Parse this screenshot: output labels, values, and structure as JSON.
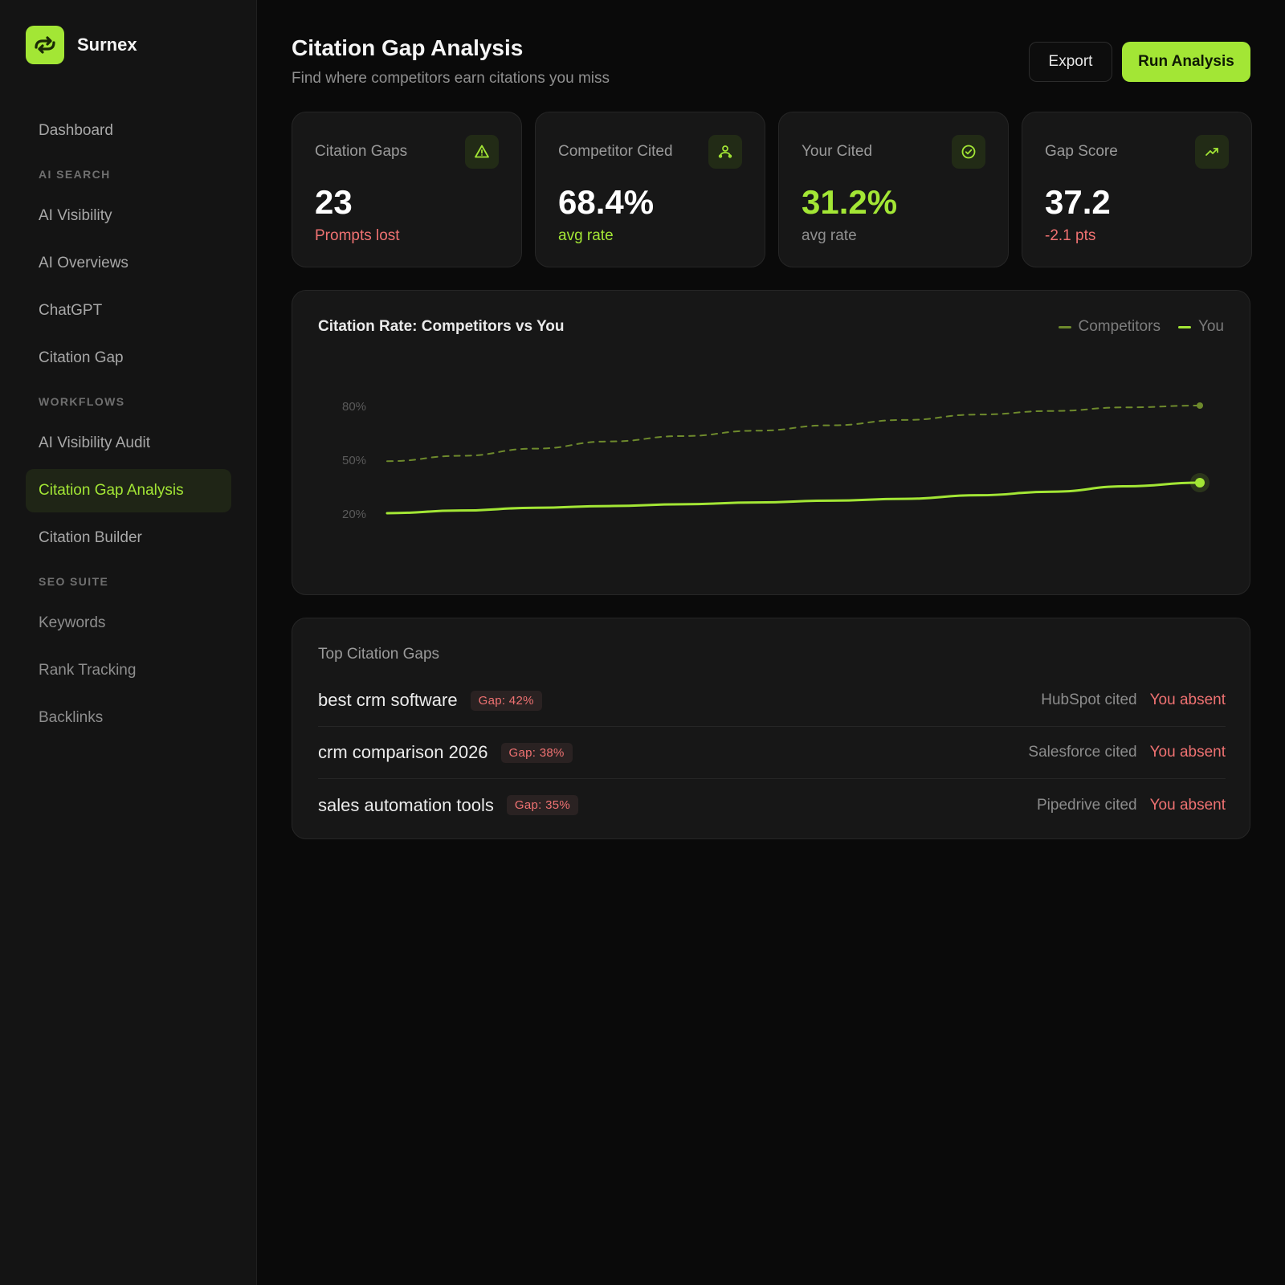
{
  "brand": {
    "name": "Surnex"
  },
  "sidebar": {
    "items": [
      {
        "type": "item",
        "label": "Dashboard",
        "name": "sidebar-item-dashboard"
      },
      {
        "type": "section",
        "label": "AI SEARCH",
        "name": "sidebar-section-ai-search"
      },
      {
        "type": "item",
        "label": "AI Visibility",
        "name": "sidebar-item-ai-visibility"
      },
      {
        "type": "item",
        "label": "AI Overviews",
        "name": "sidebar-item-ai-overviews"
      },
      {
        "type": "item",
        "label": "ChatGPT",
        "name": "sidebar-item-chatgpt"
      },
      {
        "type": "item",
        "label": "Citation Gap",
        "name": "sidebar-item-citation-gap"
      },
      {
        "type": "section",
        "label": "WORKFLOWS",
        "name": "sidebar-section-workflows"
      },
      {
        "type": "item",
        "label": "AI Visibility Audit",
        "name": "sidebar-item-ai-visibility-audit"
      },
      {
        "type": "item",
        "label": "Citation Gap Analysis",
        "name": "sidebar-item-citation-gap-analysis",
        "active": true
      },
      {
        "type": "item",
        "label": "Citation Builder",
        "name": "sidebar-item-citation-builder"
      },
      {
        "type": "section",
        "label": "SEO SUITE",
        "name": "sidebar-section-seo-suite"
      },
      {
        "type": "item",
        "label": "Keywords",
        "name": "sidebar-item-keywords",
        "dim": true
      },
      {
        "type": "item",
        "label": "Rank Tracking",
        "name": "sidebar-item-rank-tracking",
        "dim": true
      },
      {
        "type": "item",
        "label": "Backlinks",
        "name": "sidebar-item-backlinks",
        "dim": true
      }
    ]
  },
  "header": {
    "title": "Citation Gap Analysis",
    "subtitle": "Find where competitors earn citations you miss",
    "export_label": "Export",
    "run_label": "Run Analysis"
  },
  "stats": [
    {
      "label": "Citation Gaps",
      "value": "23",
      "sub": "Prompts lost",
      "icon": "warning-triangle-icon"
    },
    {
      "label": "Competitor Cited",
      "value": "68.4%",
      "sub": "avg rate",
      "icon": "users-icon"
    },
    {
      "label": "Your Cited",
      "value": "31.2%",
      "sub": "avg rate",
      "icon": "check-circle-icon"
    },
    {
      "label": "Gap Score",
      "value": "37.2",
      "sub": "-2.1 pts",
      "icon": "trending-up-icon"
    }
  ],
  "colors": {
    "accent": "#a3e635",
    "negative": "#f07272",
    "background": "#0a0a0a",
    "card": "#171717"
  },
  "chart_data": {
    "type": "line",
    "title": "Citation Rate: Competitors vs You",
    "y_ticks": [
      "80%",
      "50%",
      "20%"
    ],
    "series": [
      {
        "name": "Competitors",
        "values": [
          49,
          52,
          56,
          60,
          63,
          66,
          69,
          72,
          75,
          77,
          79,
          80
        ],
        "style": "dashed",
        "color": "#6e8a2c"
      },
      {
        "name": "You",
        "values": [
          20,
          21.5,
          23,
          24,
          25,
          26,
          27,
          28,
          30,
          32,
          35,
          37
        ],
        "style": "solid",
        "color": "#a3e635"
      }
    ],
    "grid": false,
    "legend": "top-right"
  },
  "gaps": {
    "title": "Top Citation Gaps",
    "rows": [
      {
        "query": "best crm software",
        "gap": "Gap: 42%",
        "cited": "HubSpot cited",
        "absent": "You absent"
      },
      {
        "query": "crm comparison 2026",
        "gap": "Gap: 38%",
        "cited": "Salesforce cited",
        "absent": "You absent"
      },
      {
        "query": "sales automation tools",
        "gap": "Gap: 35%",
        "cited": "Pipedrive cited",
        "absent": "You absent"
      }
    ]
  }
}
